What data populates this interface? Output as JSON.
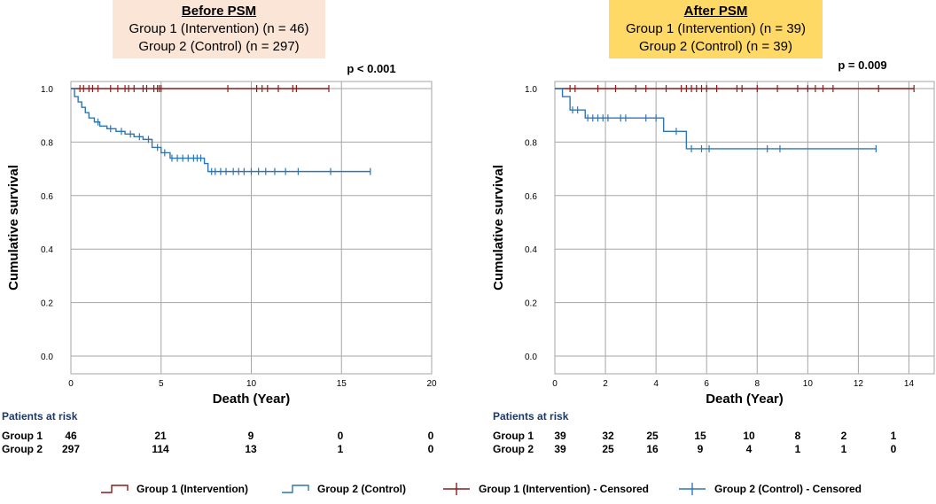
{
  "colors": {
    "group1": "#8b1a1a",
    "group2": "#2e75b6",
    "risk_title": "#1f3864",
    "grid": "#a6a6a6"
  },
  "panels": [
    {
      "box": {
        "heading": "Before PSM",
        "line1": "Group 1 (Intervention) (n = 46)",
        "line2": "Group 2 (Control) (n = 297)",
        "color": "#fbe5d6"
      },
      "p_value": "p < 0.001",
      "risk": {
        "title": "Patients at risk",
        "rows": [
          {
            "label": "Group 1",
            "values": [
              "46",
              "21",
              "9",
              "0",
              "0"
            ]
          },
          {
            "label": "Group 2",
            "values": [
              "297",
              "114",
              "13",
              "1",
              "0"
            ]
          }
        ]
      }
    },
    {
      "box": {
        "heading": "After PSM",
        "line1": "Group 1 (Intervention) (n = 39)",
        "line2": "Group 2 (Control) (n = 39)",
        "color": "#ffd966"
      },
      "p_value": "p = 0.009",
      "risk": {
        "title": "Patients at risk",
        "rows": [
          {
            "label": "Group 1",
            "values": [
              "39",
              "32",
              "25",
              "15",
              "10",
              "8",
              "2",
              "1"
            ]
          },
          {
            "label": "Group 2",
            "values": [
              "39",
              "25",
              "16",
              "9",
              "4",
              "1",
              "1",
              "0"
            ]
          }
        ]
      }
    }
  ],
  "chart_data": [
    {
      "type": "line",
      "title": "Before PSM",
      "xlabel": "Death (Year)",
      "ylabel": "Cumulative survival",
      "xlim": [
        0,
        20
      ],
      "ylim": [
        0,
        1.0
      ],
      "xticks": [
        0,
        5,
        10,
        15,
        20
      ],
      "yticks": [
        0.0,
        0.2,
        0.4,
        0.6,
        0.8,
        1.0
      ],
      "ytick_labels": [
        "0.0",
        "0.2",
        "0.4",
        "0.6",
        "0.8",
        "1.0"
      ],
      "series": [
        {
          "name": "Group 1 (Intervention)",
          "steps": [
            [
              0,
              1.0
            ],
            [
              14.3,
              1.0
            ]
          ],
          "censored": [
            0.5,
            0.7,
            1.0,
            1.2,
            1.5,
            2.2,
            2.6,
            3.0,
            3.2,
            3.5,
            4.0,
            4.2,
            4.6,
            4.8,
            4.9,
            5.0,
            8.7,
            10.3,
            10.6,
            10.9,
            11.5,
            12.3,
            12.5,
            14.3
          ]
        },
        {
          "name": "Group 2 (Control)",
          "steps": [
            [
              0,
              1.0
            ],
            [
              0.2,
              0.97
            ],
            [
              0.4,
              0.95
            ],
            [
              0.6,
              0.93
            ],
            [
              0.8,
              0.91
            ],
            [
              1.0,
              0.89
            ],
            [
              1.3,
              0.875
            ],
            [
              1.6,
              0.86
            ],
            [
              2.0,
              0.85
            ],
            [
              2.5,
              0.84
            ],
            [
              3.0,
              0.83
            ],
            [
              3.5,
              0.82
            ],
            [
              4.0,
              0.81
            ],
            [
              4.5,
              0.78
            ],
            [
              5.0,
              0.76
            ],
            [
              5.5,
              0.74
            ],
            [
              7.4,
              0.72
            ],
            [
              7.6,
              0.69
            ],
            [
              16.6,
              0.69
            ]
          ],
          "censored": [
            1.5,
            2.2,
            2.8,
            3.3,
            3.8,
            4.3,
            4.8,
            5.2,
            5.6,
            5.9,
            6.2,
            6.5,
            6.8,
            7.0,
            7.2,
            7.8,
            8.0,
            8.3,
            8.6,
            9.0,
            9.3,
            9.6,
            10.0,
            10.4,
            10.8,
            11.3,
            11.9,
            12.6,
            14.4,
            16.6
          ]
        }
      ]
    },
    {
      "type": "line",
      "title": "After PSM",
      "xlabel": "Death (Year)",
      "ylabel": "Cumulative survival",
      "xlim": [
        0,
        15
      ],
      "ylim": [
        0,
        1.0
      ],
      "xticks": [
        0,
        2,
        4,
        6,
        8,
        10,
        12,
        14
      ],
      "yticks": [
        0.0,
        0.2,
        0.4,
        0.6,
        0.8,
        1.0
      ],
      "ytick_labels": [
        "0.0",
        "0.2",
        "0.4",
        "0.6",
        "0.8",
        "1.0"
      ],
      "series": [
        {
          "name": "Group 1 (Intervention)",
          "steps": [
            [
              0,
              1.0
            ],
            [
              14.2,
              1.0
            ]
          ],
          "censored": [
            0.6,
            0.8,
            1.7,
            2.4,
            3.2,
            3.6,
            4.4,
            5.0,
            5.2,
            5.4,
            5.6,
            5.8,
            6.0,
            6.4,
            7.2,
            7.4,
            8.0,
            8.8,
            9.6,
            10.0,
            10.3,
            10.6,
            11.0,
            12.8,
            14.2
          ]
        },
        {
          "name": "Group 2 (Control)",
          "steps": [
            [
              0,
              1.0
            ],
            [
              0.3,
              0.97
            ],
            [
              0.6,
              0.92
            ],
            [
              1.2,
              0.89
            ],
            [
              4.3,
              0.84
            ],
            [
              5.2,
              0.775
            ],
            [
              12.7,
              0.775
            ]
          ],
          "censored": [
            0.7,
            0.9,
            1.3,
            1.5,
            1.7,
            1.9,
            2.1,
            2.6,
            2.8,
            3.6,
            4.0,
            4.8,
            5.4,
            5.8,
            6.1,
            8.4,
            8.9,
            12.7
          ]
        }
      ]
    }
  ],
  "legend": [
    {
      "label": "Group 1 (Intervention)",
      "kind": "step",
      "color": "#8b1a1a"
    },
    {
      "label": "Group 2 (Control)",
      "kind": "step",
      "color": "#2e75b6"
    },
    {
      "label": "Group 1 (Intervention) - Censored",
      "kind": "cross",
      "color": "#8b1a1a"
    },
    {
      "label": "Group 2 (Control) - Censored",
      "kind": "cross",
      "color": "#2e75b6"
    }
  ]
}
